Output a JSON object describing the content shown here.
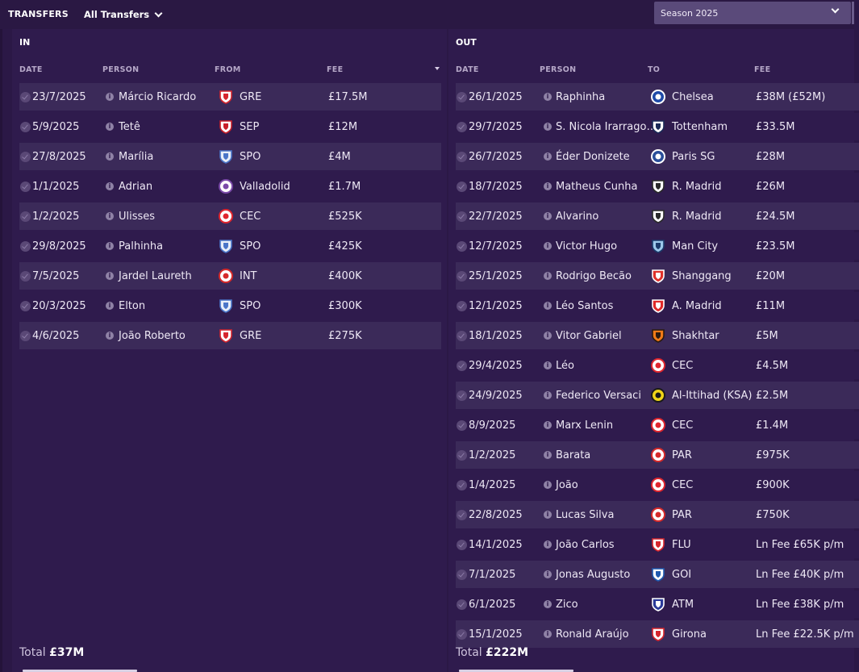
{
  "topbar": {
    "title": "TRANSFERS",
    "filter_label": "All Transfers",
    "season_label": "Season 2025"
  },
  "in_panel": {
    "heading": "IN",
    "columns": [
      "DATE",
      "PERSON",
      "FROM",
      "FEE"
    ],
    "rows": [
      {
        "date": "23/7/2025",
        "person": "Márcio Ricardo",
        "club": "GRE",
        "fee": "£17.5M"
      },
      {
        "date": "5/9/2025",
        "person": "Tetê",
        "club": "SEP",
        "fee": "£12M"
      },
      {
        "date": "27/8/2025",
        "person": "Marília",
        "club": "SPO",
        "fee": "£4M"
      },
      {
        "date": "1/1/2025",
        "person": "Adrian",
        "club": "Valladolid",
        "fee": "£1.7M"
      },
      {
        "date": "1/2/2025",
        "person": "Ulisses",
        "club": "CEC",
        "fee": "£525K"
      },
      {
        "date": "29/8/2025",
        "person": "Palhinha",
        "club": "SPO",
        "fee": "£425K"
      },
      {
        "date": "7/5/2025",
        "person": "Jardel Laureth",
        "club": "INT",
        "fee": "£400K"
      },
      {
        "date": "20/3/2025",
        "person": "Elton",
        "club": "SPO",
        "fee": "£300K"
      },
      {
        "date": "4/6/2025",
        "person": "João Roberto",
        "club": "GRE",
        "fee": "£275K"
      }
    ],
    "total_label": "Total",
    "total_value": "£37M"
  },
  "out_panel": {
    "heading": "OUT",
    "columns": [
      "DATE",
      "PERSON",
      "TO",
      "FEE"
    ],
    "rows": [
      {
        "date": "26/1/2025",
        "person": "Raphinha",
        "club": "Chelsea",
        "fee": "£38M (£52M)"
      },
      {
        "date": "29/7/2025",
        "person": "S. Nicola Irarrago…",
        "club": "Tottenham",
        "fee": "£33.5M"
      },
      {
        "date": "26/7/2025",
        "person": "Éder Donizete",
        "club": "Paris SG",
        "fee": "£28M"
      },
      {
        "date": "18/7/2025",
        "person": "Matheus Cunha",
        "club": "R. Madrid",
        "fee": "£26M"
      },
      {
        "date": "22/7/2025",
        "person": "Alvarino",
        "club": "R. Madrid",
        "fee": "£24.5M"
      },
      {
        "date": "12/7/2025",
        "person": "Victor Hugo",
        "club": "Man City",
        "fee": "£23.5M"
      },
      {
        "date": "25/1/2025",
        "person": "Rodrigo Becão",
        "club": "Shanggang",
        "fee": "£20M"
      },
      {
        "date": "12/1/2025",
        "person": "Léo Santos",
        "club": "A. Madrid",
        "fee": "£11M"
      },
      {
        "date": "18/1/2025",
        "person": "Vitor Gabriel",
        "club": "Shakhtar",
        "fee": "£5M"
      },
      {
        "date": "29/4/2025",
        "person": "Léo",
        "club": "CEC",
        "fee": "£4.5M"
      },
      {
        "date": "24/9/2025",
        "person": "Federico Versaci",
        "club": "Al-Ittihad (KSA)",
        "fee": "£2.5M"
      },
      {
        "date": "8/9/2025",
        "person": "Marx Lenin",
        "club": "CEC",
        "fee": "£1.4M"
      },
      {
        "date": "1/2/2025",
        "person": "Barata",
        "club": "PAR",
        "fee": "£975K"
      },
      {
        "date": "1/4/2025",
        "person": "João",
        "club": "CEC",
        "fee": "£900K"
      },
      {
        "date": "22/8/2025",
        "person": "Lucas Silva",
        "club": "PAR",
        "fee": "£750K"
      },
      {
        "date": "14/1/2025",
        "person": "João Carlos",
        "club": "FLU",
        "fee": "Ln Fee £65K p/m"
      },
      {
        "date": "7/1/2025",
        "person": "Jonas Augusto",
        "club": "GOI",
        "fee": "Ln Fee £40K p/m"
      },
      {
        "date": "6/1/2025",
        "person": "Zico",
        "club": "ATM",
        "fee": "Ln Fee £38K p/m"
      },
      {
        "date": "15/1/2025",
        "person": "Ronald Araújo",
        "club": "Girona",
        "fee": "Ln Fee £22.5K p/m"
      }
    ],
    "total_label": "Total",
    "total_value": "£222M"
  },
  "colors": {
    "background": "#2b1846",
    "panel": "#2f1b4d",
    "row_alt": "#3b2a59",
    "season_dropdown": "#5a4a7a"
  },
  "icons": {
    "row_status": "check-circle-icon",
    "person_info": "info-icon",
    "club": "club-crest-icon",
    "dropdown": "chevron-down-icon",
    "sort": "sort-desc-icon"
  }
}
